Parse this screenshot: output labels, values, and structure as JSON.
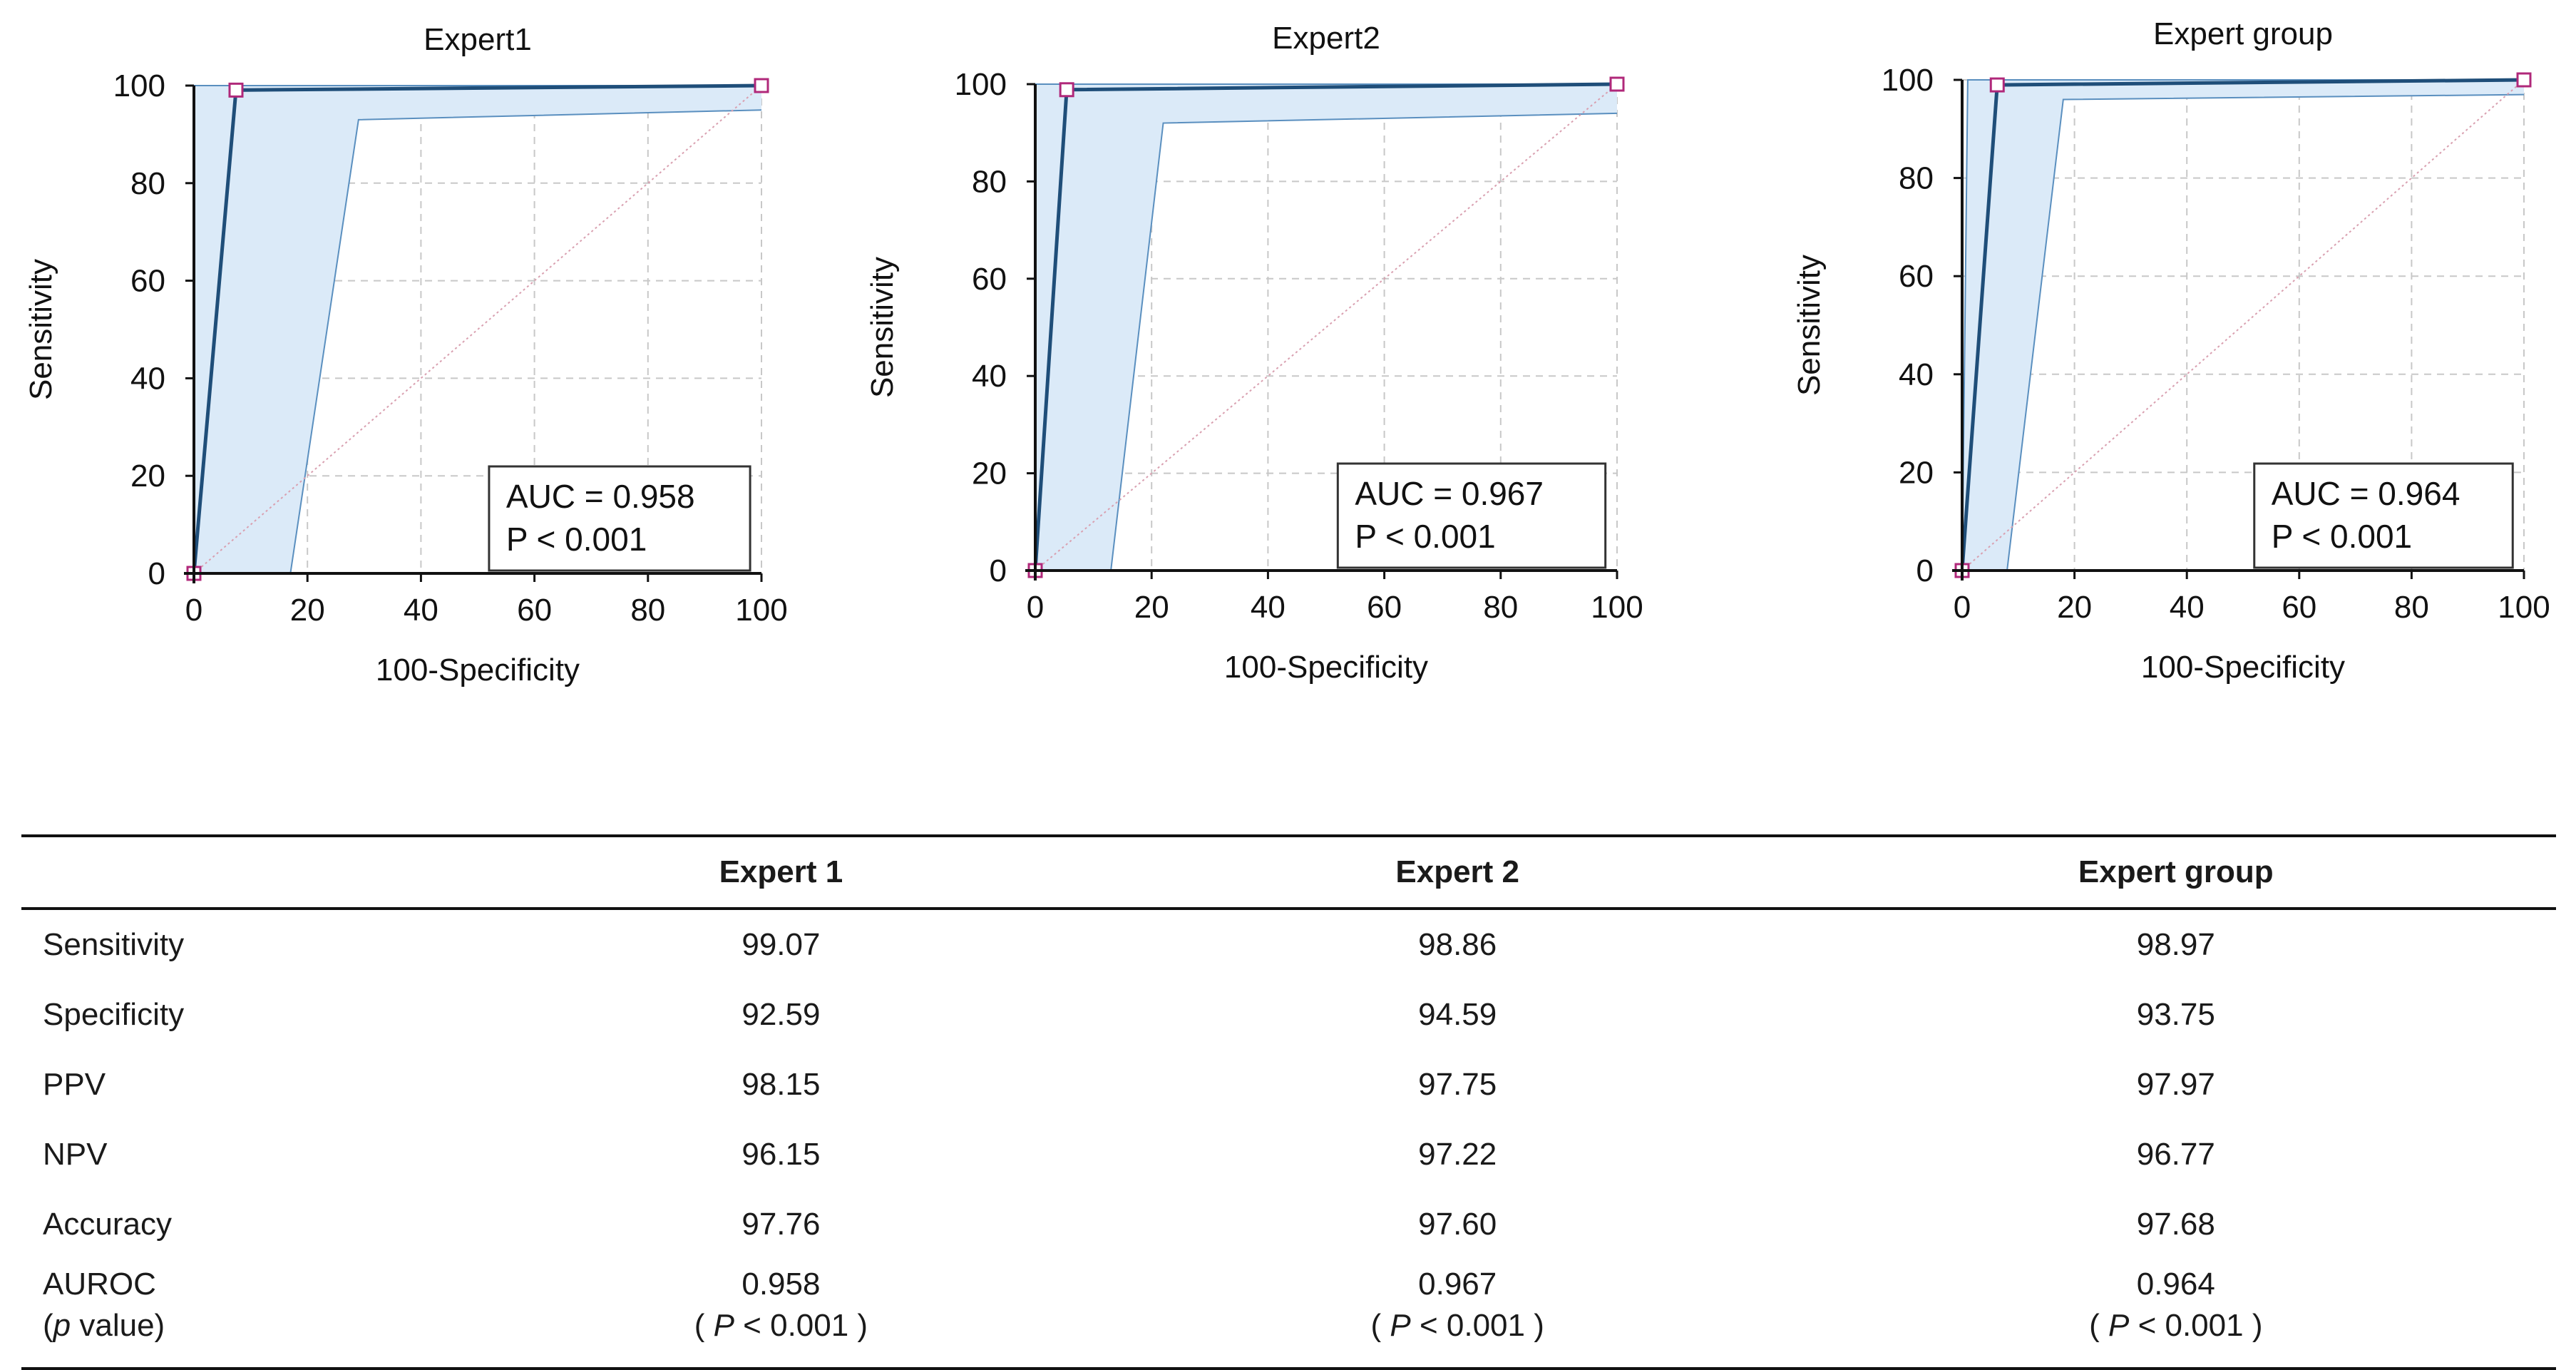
{
  "chart_data": [
    {
      "type": "line",
      "title": "Expert1",
      "xlabel": "100-Specificity",
      "ylabel": "Sensitivity",
      "xlim": [
        0,
        100
      ],
      "ylim": [
        0,
        100
      ],
      "xticks": [
        "0",
        "20",
        "40",
        "60",
        "80",
        "100"
      ],
      "yticks": [
        "0",
        "20",
        "40",
        "60",
        "80",
        "100"
      ],
      "grid": true,
      "roc_points": [
        [
          0,
          0
        ],
        [
          7.41,
          99.07
        ],
        [
          100,
          100
        ]
      ],
      "ci_upper": [
        [
          0,
          0
        ],
        [
          0,
          100
        ],
        [
          100,
          100
        ]
      ],
      "ci_lower": [
        [
          17,
          0
        ],
        [
          29,
          93
        ],
        [
          100,
          95
        ]
      ],
      "annotation": {
        "auc": "AUC = 0.958",
        "p": "P < 0.001"
      }
    },
    {
      "type": "line",
      "title": "Expert2",
      "xlabel": "100-Specificity",
      "ylabel": "Sensitivity",
      "xlim": [
        0,
        100
      ],
      "ylim": [
        0,
        100
      ],
      "xticks": [
        "0",
        "20",
        "40",
        "60",
        "80",
        "100"
      ],
      "yticks": [
        "0",
        "20",
        "40",
        "60",
        "80",
        "100"
      ],
      "grid": true,
      "roc_points": [
        [
          0,
          0
        ],
        [
          5.41,
          98.86
        ],
        [
          100,
          100
        ]
      ],
      "ci_upper": [
        [
          0,
          0
        ],
        [
          0,
          100
        ],
        [
          100,
          100
        ]
      ],
      "ci_lower": [
        [
          13,
          0
        ],
        [
          22,
          92
        ],
        [
          100,
          94
        ]
      ],
      "annotation": {
        "auc": "AUC = 0.967",
        "p": "P < 0.001"
      }
    },
    {
      "type": "line",
      "title": "Expert group",
      "xlabel": "100-Specificity",
      "ylabel": "Sensitivity",
      "xlim": [
        0,
        100
      ],
      "ylim": [
        0,
        100
      ],
      "xticks": [
        "0",
        "20",
        "40",
        "60",
        "80",
        "100"
      ],
      "yticks": [
        "0",
        "20",
        "40",
        "60",
        "80",
        "100"
      ],
      "grid": true,
      "roc_points": [
        [
          0,
          0
        ],
        [
          6.25,
          98.97
        ],
        [
          100,
          100
        ]
      ],
      "ci_upper": [
        [
          0,
          0
        ],
        [
          1,
          100
        ],
        [
          100,
          100
        ]
      ],
      "ci_lower": [
        [
          8,
          0
        ],
        [
          18,
          96
        ],
        [
          100,
          97
        ]
      ],
      "annotation": {
        "auc": "AUC = 0.964",
        "p": "P < 0.001"
      }
    }
  ],
  "table": {
    "headers": [
      "",
      "Expert 1",
      "Expert 2",
      "Expert group"
    ],
    "rows": [
      {
        "label": "Sensitivity",
        "values": [
          "99.07",
          "98.86",
          "98.97"
        ]
      },
      {
        "label": "Specificity",
        "values": [
          "92.59",
          "94.59",
          "93.75"
        ]
      },
      {
        "label": "PPV",
        "values": [
          "98.15",
          "97.75",
          "97.97"
        ]
      },
      {
        "label": "NPV",
        "values": [
          "96.15",
          "97.22",
          "96.77"
        ]
      },
      {
        "label": "Accuracy",
        "values": [
          "97.76",
          "97.60",
          "97.68"
        ]
      }
    ],
    "auroc": {
      "label": "AUROC",
      "sublabel_p": "p",
      "sublabel_rest": " value)",
      "sublabel_open": "(",
      "values": [
        "0.958",
        "0.967",
        "0.964"
      ],
      "p_open": "( ",
      "p_letter": "P",
      "p_rest": " < 0.001 )"
    }
  },
  "colors": {
    "roc_line": "#1f4e79",
    "ci_fill": "#dbeaf8",
    "ci_line": "#5a8fbf",
    "grid": "#c8c8c8",
    "diagonal": "#d9a0b0",
    "marker": "#b0287a"
  }
}
